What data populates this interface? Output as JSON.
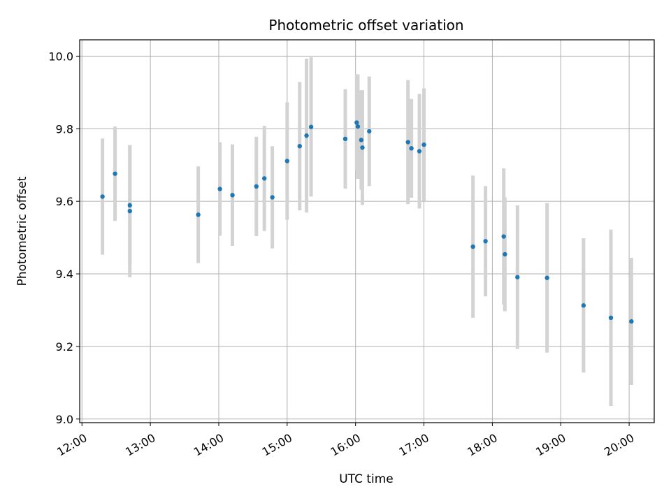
{
  "chart_data": {
    "type": "scatter",
    "title": "Photometric offset variation",
    "xlabel": "UTC time",
    "ylabel": "Photometric offset",
    "x_ticks": [
      "12:00",
      "13:00",
      "14:00",
      "15:00",
      "16:00",
      "17:00",
      "18:00",
      "19:00",
      "20:00"
    ],
    "y_ticks": [
      "9.0",
      "9.2",
      "9.4",
      "9.6",
      "9.8",
      "10.0"
    ],
    "xlim": [
      "11:58",
      "20:22"
    ],
    "ylim": [
      8.99,
      10.045
    ],
    "grid": true,
    "colors": {
      "points": "#1f77b4",
      "errorbars": "#d3d3d3",
      "grid": "#b0b0b0"
    },
    "series": [
      {
        "points": [
          {
            "x": "12:18",
            "y": 9.613,
            "err": 0.16
          },
          {
            "x": "12:29",
            "y": 9.676,
            "err": 0.13
          },
          {
            "x": "12:42",
            "y": 9.589,
            "err": 0.165
          },
          {
            "x": "12:42",
            "y": 9.573,
            "err": 0.182
          },
          {
            "x": "13:42",
            "y": 9.563,
            "err": 0.133
          },
          {
            "x": "14:01",
            "y": 9.634,
            "err": 0.129
          },
          {
            "x": "14:12",
            "y": 9.617,
            "err": 0.14
          },
          {
            "x": "14:33",
            "y": 9.641,
            "err": 0.137
          },
          {
            "x": "14:40",
            "y": 9.663,
            "err": 0.145
          },
          {
            "x": "14:47",
            "y": 9.611,
            "err": 0.141
          },
          {
            "x": "15:00",
            "y": 9.711,
            "err": 0.162
          },
          {
            "x": "15:11",
            "y": 9.752,
            "err": 0.177
          },
          {
            "x": "15:17",
            "y": 9.781,
            "err": 0.212
          },
          {
            "x": "15:21",
            "y": 9.805,
            "err": 0.192
          },
          {
            "x": "15:51",
            "y": 9.772,
            "err": 0.137
          },
          {
            "x": "16:01",
            "y": 9.817,
            "err": 0.133
          },
          {
            "x": "16:02",
            "y": 9.806,
            "err": 0.144
          },
          {
            "x": "16:05",
            "y": 9.769,
            "err": 0.137
          },
          {
            "x": "16:06",
            "y": 9.748,
            "err": 0.158
          },
          {
            "x": "16:12",
            "y": 9.793,
            "err": 0.151
          },
          {
            "x": "16:46",
            "y": 9.763,
            "err": 0.171
          },
          {
            "x": "16:49",
            "y": 9.746,
            "err": 0.136
          },
          {
            "x": "16:56",
            "y": 9.738,
            "err": 0.158
          },
          {
            "x": "17:00",
            "y": 9.756,
            "err": 0.155
          },
          {
            "x": "17:43",
            "y": 9.475,
            "err": 0.196
          },
          {
            "x": "17:54",
            "y": 9.49,
            "err": 0.152
          },
          {
            "x": "18:10",
            "y": 9.503,
            "err": 0.188
          },
          {
            "x": "18:11",
            "y": 9.454,
            "err": 0.157
          },
          {
            "x": "18:22",
            "y": 9.391,
            "err": 0.198
          },
          {
            "x": "18:48",
            "y": 9.389,
            "err": 0.206
          },
          {
            "x": "19:20",
            "y": 9.313,
            "err": 0.185
          },
          {
            "x": "19:44",
            "y": 9.279,
            "err": 0.243
          },
          {
            "x": "20:02",
            "y": 9.269,
            "err": 0.175
          }
        ]
      }
    ]
  }
}
